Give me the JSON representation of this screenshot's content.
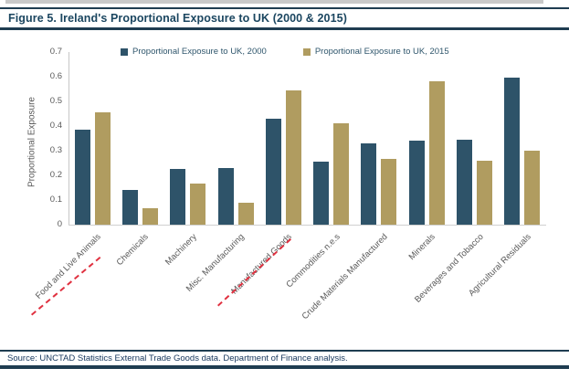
{
  "figure": {
    "title": "Figure 5. Ireland's Proportional Exposure to UK (2000 & 2015)",
    "source": "Source: UNCTAD Statistics External Trade Goods data. Department of Finance analysis."
  },
  "chart_data": {
    "type": "bar",
    "title": "Ireland's Proportional Exposure to UK (2000 & 2015)",
    "xlabel": "",
    "ylabel": "Proportional Exposure",
    "ylim": [
      0,
      0.7
    ],
    "ytick_step": 0.1,
    "grid": false,
    "legend_position": "top",
    "categories": [
      "Food and Live Animals",
      "Chemicals",
      "Machinery",
      "Misc. Manufacturing",
      "Manufactured Goods",
      "Commodities n.e.s",
      "Crude Materials Manufactured",
      "Minerals",
      "Beverages and Tobacco",
      "Agricultural Residuals"
    ],
    "series": [
      {
        "name": "Proportional Exposure to UK, 2000",
        "color": "#2e5369",
        "values": [
          0.385,
          0.14,
          0.225,
          0.23,
          0.43,
          0.255,
          0.33,
          0.34,
          0.345,
          0.595
        ]
      },
      {
        "name": "Proportional Exposure to UK, 2015",
        "color": "#b09c60",
        "values": [
          0.455,
          0.065,
          0.165,
          0.09,
          0.545,
          0.41,
          0.265,
          0.58,
          0.26,
          0.3
        ]
      }
    ],
    "annotations": {
      "underlined_categories": [
        "Food and Live Animals",
        "Manufactured Goods"
      ],
      "underline_style": "red-dashed",
      "underline_color": "#e03140"
    }
  },
  "colors": {
    "bar_2000": "#2e5369",
    "bar_2015": "#b09c60",
    "frame_rule": "#1f3d51",
    "title_text": "#1b4660",
    "axis_text": "#595959",
    "axis_line": "#c6c6c6",
    "annotation_red": "#e03140"
  }
}
